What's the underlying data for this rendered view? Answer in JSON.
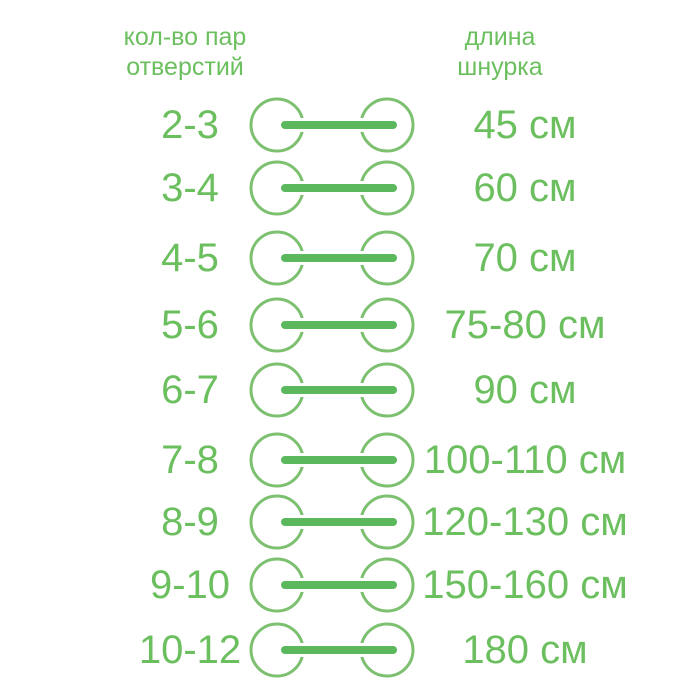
{
  "header": {
    "left": [
      "кол-во пар",
      "отверстий"
    ],
    "right": [
      "длина",
      "шнурка"
    ]
  },
  "colors": {
    "text": "#6cbf5f",
    "circle": "#7cc070",
    "bar": "#5cb85c"
  },
  "rows": [
    {
      "pairs": "2-3",
      "length": "45 см"
    },
    {
      "pairs": "3-4",
      "length": "60 см"
    },
    {
      "pairs": "4-5",
      "length": "70 см"
    },
    {
      "pairs": "5-6",
      "length": "75-80 см"
    },
    {
      "pairs": "6-7",
      "length": "90 см"
    },
    {
      "pairs": "7-8",
      "length": "100-110 см"
    },
    {
      "pairs": "8-9",
      "length": "120-130 см"
    },
    {
      "pairs": "9-10",
      "length": "150-160 см"
    },
    {
      "pairs": "10-12",
      "length": "180 см"
    }
  ]
}
